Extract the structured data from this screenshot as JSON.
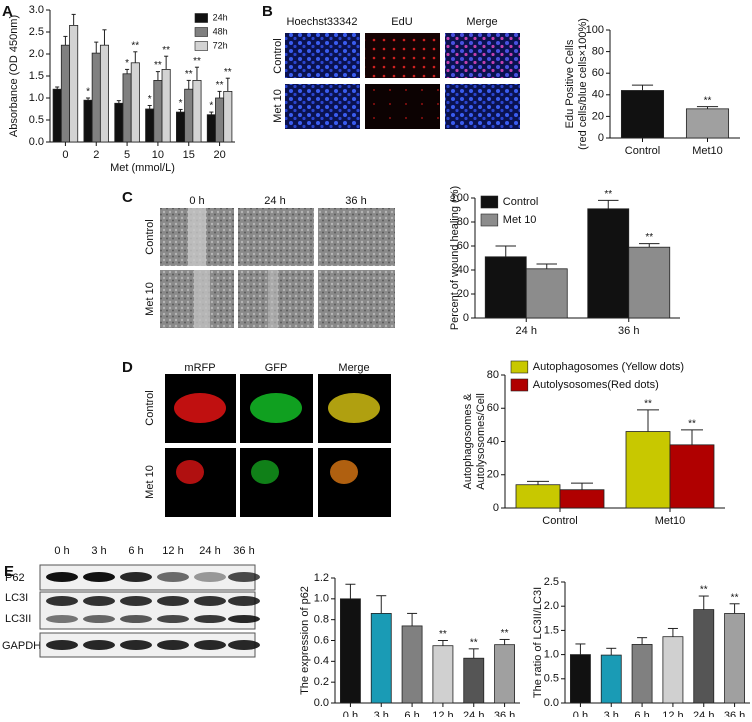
{
  "figure": {
    "panel_labels": [
      "A",
      "B",
      "C",
      "D",
      "E"
    ],
    "edu_columns": [
      "Hoechst33342",
      "EdU",
      "Merge"
    ],
    "edu_rows": [
      "Control",
      "Met 10"
    ],
    "wound_columns": [
      "0 h",
      "24 h",
      "36 h"
    ],
    "wound_rows": [
      "Control",
      "Met 10"
    ],
    "autophagy_columns": [
      "mRFP",
      "GFP",
      "Merge"
    ],
    "autophagy_rows": [
      "Control",
      "Met 10"
    ],
    "blot_columns": [
      "0 h",
      "3 h",
      "6 h",
      "12 h",
      "24 h",
      "36 h"
    ],
    "blot_rows": [
      "P62",
      "LC3I",
      "LC3II",
      "GAPDH"
    ]
  },
  "chart_data": [
    {
      "type": "bar",
      "ylabel": [
        "Absorbance (OD 450nm)"
      ],
      "xlabel": "Met (mmol/L)",
      "categories": [
        "0",
        "2",
        "5",
        "10",
        "15",
        "20"
      ],
      "series": [
        {
          "name": "24h",
          "color": "#111111",
          "values": [
            1.2,
            0.95,
            0.88,
            0.75,
            0.68,
            0.62
          ],
          "errors": [
            0.05,
            0.05,
            0.06,
            0.08,
            0.06,
            0.06
          ],
          "stars": [
            null,
            "*",
            null,
            "*",
            "*",
            "*"
          ]
        },
        {
          "name": "48h",
          "color": "#808080",
          "values": [
            2.2,
            2.02,
            1.55,
            1.4,
            1.2,
            1.0
          ],
          "errors": [
            0.2,
            0.25,
            0.1,
            0.2,
            0.2,
            0.15
          ],
          "stars": [
            null,
            null,
            "*",
            "**",
            "**",
            "**"
          ]
        },
        {
          "name": "72h",
          "color": "#d3d3d3",
          "values": [
            2.65,
            2.2,
            1.8,
            1.65,
            1.4,
            1.15
          ],
          "errors": [
            0.25,
            0.35,
            0.25,
            0.3,
            0.3,
            0.3
          ],
          "stars": [
            null,
            null,
            "**",
            "**",
            "**",
            "**"
          ]
        }
      ],
      "ylim": [
        0,
        3
      ],
      "yticks": [
        {
          "value": 0,
          "label": "0.0"
        },
        0.5,
        {
          "value": 1,
          "label": "1.0"
        },
        1.5,
        {
          "value": 2,
          "label": "2.0"
        },
        2.5,
        {
          "value": 3,
          "label": "3.0"
        }
      ],
      "grid": false,
      "legend": "upper right"
    },
    {
      "type": "bar",
      "ylabel": [
        "Edu Positive Cells",
        "(red cells/blue cells×100%)"
      ],
      "categories": [
        "Control",
        "Met10"
      ],
      "values": [
        44,
        27
      ],
      "errors": [
        5,
        2
      ],
      "colors": [
        "#111111",
        "#a0a0a0"
      ],
      "stars": [
        null,
        "**"
      ],
      "ylim": [
        0,
        100
      ],
      "yticks": [
        0,
        20,
        40,
        60,
        80,
        100
      ],
      "grid": false
    },
    {
      "type": "bar",
      "ylabel": [
        "Percent of wound  healing (%)"
      ],
      "categories": [
        "24 h",
        "36 h"
      ],
      "series": [
        {
          "name": "Control",
          "color": "#111111",
          "values": [
            51,
            91
          ],
          "errors": [
            9,
            7
          ],
          "stars": [
            null,
            "**"
          ]
        },
        {
          "name": "Met 10",
          "color": "#8c8c8c",
          "values": [
            41,
            59
          ],
          "errors": [
            4,
            3
          ],
          "stars": [
            null,
            "**"
          ]
        }
      ],
      "ylim": [
        0,
        100
      ],
      "yticks": [
        0,
        20,
        40,
        60,
        80,
        100
      ],
      "grid": false,
      "legend": "upper left"
    },
    {
      "type": "bar",
      "ylabel": [
        "Autophagosomes &",
        "Autolysosomes/Cell"
      ],
      "categories": [
        "Control",
        "Met10"
      ],
      "series": [
        {
          "name": "Autophagosomes (Yellow dots)",
          "color": "#c8c800",
          "values": [
            14,
            46
          ],
          "errors": [
            2,
            13
          ],
          "stars": [
            null,
            "**"
          ]
        },
        {
          "name": "Autolysosomes(Red dots)",
          "color": "#b00000",
          "values": [
            11,
            38
          ],
          "errors": [
            4,
            9
          ],
          "stars": [
            null,
            "**"
          ]
        }
      ],
      "ylim": [
        0,
        80
      ],
      "yticks": [
        0,
        20,
        40,
        60,
        80
      ],
      "grid": false,
      "legend": "top"
    },
    {
      "type": "bar",
      "ylabel": [
        "The expression of p62"
      ],
      "categories": [
        "0 h",
        "3 h",
        "6 h",
        "12 h",
        "24 h",
        "36 h"
      ],
      "values": [
        1.0,
        0.86,
        0.74,
        0.55,
        0.43,
        0.56
      ],
      "errors": [
        0.14,
        0.17,
        0.12,
        0.05,
        0.09,
        0.05
      ],
      "colors": [
        "#111111",
        "#1a9bb5",
        "#808080",
        "#d0d0d0",
        "#555555",
        "#a0a0a0"
      ],
      "stars": [
        null,
        null,
        null,
        "**",
        "**",
        "**"
      ],
      "ylim": [
        0,
        1.2
      ],
      "yticks": [
        {
          "value": 0,
          "label": "0.0"
        },
        0.2,
        0.4,
        0.6,
        0.8,
        {
          "value": 1,
          "label": "1.0"
        },
        1.2
      ],
      "grid": false
    },
    {
      "type": "bar",
      "ylabel": [
        "The ratio of LC3II/LC3I"
      ],
      "categories": [
        "0 h",
        "3 h",
        "6 h",
        "12 h",
        "24 h",
        "36 h"
      ],
      "values": [
        1.0,
        0.99,
        1.21,
        1.37,
        1.93,
        1.85
      ],
      "errors": [
        0.22,
        0.14,
        0.14,
        0.17,
        0.28,
        0.2
      ],
      "colors": [
        "#111111",
        "#1a9bb5",
        "#808080",
        "#d0d0d0",
        "#555555",
        "#a0a0a0"
      ],
      "stars": [
        null,
        null,
        null,
        null,
        "**",
        "**"
      ],
      "ylim": [
        0,
        2.5
      ],
      "yticks": [
        {
          "value": 0,
          "label": "0.0"
        },
        0.5,
        {
          "value": 1,
          "label": "1.0"
        },
        1.5,
        {
          "value": 2,
          "label": "2.0"
        },
        2.5
      ],
      "grid": false
    }
  ]
}
